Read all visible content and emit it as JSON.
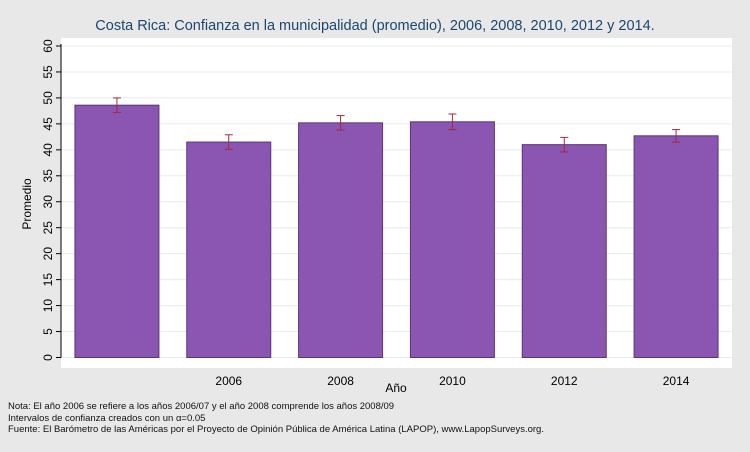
{
  "chart_data": {
    "type": "bar",
    "title": "Costa Rica: Confianza en la municipalidad (promedio), 2006, 2008, 2010, 2012 y 2014.",
    "xlabel": "Año",
    "ylabel": "Promedio",
    "ylim": [
      0,
      60
    ],
    "yticks": [
      0,
      5,
      10,
      15,
      20,
      25,
      30,
      35,
      40,
      45,
      50,
      55,
      60
    ],
    "categories": [
      "",
      "2006",
      "2008",
      "2010",
      "2012",
      "2014"
    ],
    "values": [
      48.6,
      41.5,
      45.2,
      45.4,
      41.0,
      42.7
    ],
    "error_low": [
      47.2,
      40.1,
      43.8,
      43.9,
      39.6,
      41.5
    ],
    "error_high": [
      50.0,
      42.9,
      46.6,
      46.9,
      42.4,
      43.9
    ],
    "grid": true,
    "bar_color": "#8b55b2",
    "error_color": "#a3293a",
    "plot_background": "#ffffff",
    "page_background": "#e8e8e8"
  },
  "notes": [
    "Nota: El año 2006 se refiere a los años 2006/07 y el año 2008 comprende los años 2008/09",
    "Intervalos de confianza creados con un α=0.05",
    "Fuente: El Barómetro de las Américas por el Proyecto de Opinión Pública de América Latina (LAPOP), www.LapopSurveys.org."
  ]
}
